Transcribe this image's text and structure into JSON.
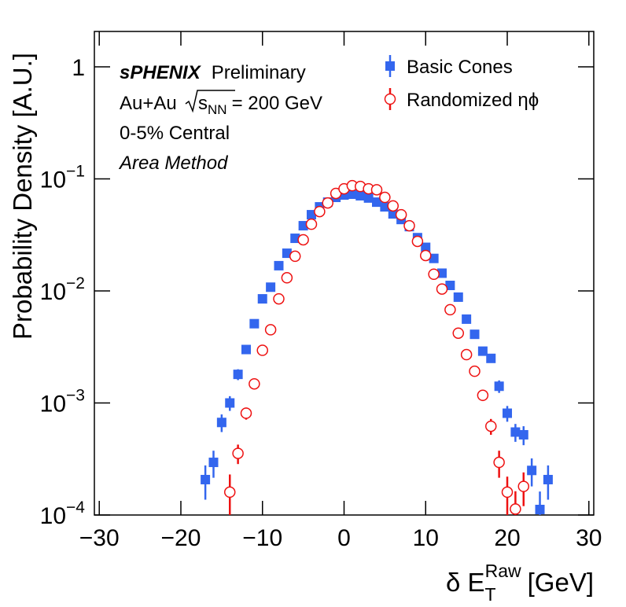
{
  "chart_data": {
    "type": "scatter",
    "ylabel": "Probability Density [A.U.]",
    "xlabel": {
      "text": "δ E",
      "subscript": "T",
      "superscript": "Raw",
      "unit": "[GeV]"
    },
    "annotations": {
      "experiment": "sPHENIX",
      "status": "Preliminary",
      "collision": "Au+Au",
      "energy": {
        "symbol": "s",
        "subscript": "NN",
        "text": "= 200 GeV"
      },
      "centrality": "0-5% Central",
      "method": "Area Method"
    },
    "log_y": true,
    "legend": "top-right",
    "xlim": [
      -30.6,
      30.6
    ],
    "ylim": [
      0.0001,
      2.07
    ],
    "xticks": [
      {
        "value": -30,
        "label": "−30"
      },
      {
        "value": -20,
        "label": "−20"
      },
      {
        "value": -10,
        "label": "−10"
      },
      0,
      10,
      20,
      30
    ],
    "yticks": [
      1,
      {
        "value": 0.1,
        "label": "10",
        "exponent": "−1"
      },
      {
        "value": 0.01,
        "label": "10",
        "exponent": "−2"
      },
      {
        "value": 0.001,
        "label": "10",
        "exponent": "−3"
      },
      {
        "value": 0.0001,
        "label": "10",
        "exponent": "−4"
      }
    ],
    "series": [
      {
        "name": "Basic Cones",
        "color": "#3366ee",
        "marker": "square",
        "x": [
          -17,
          -16,
          -15,
          -14,
          -13,
          -12,
          -11,
          -10,
          -9,
          -8,
          -7,
          -6,
          -5,
          -4,
          -3,
          -2,
          -1,
          0,
          1,
          2,
          3,
          4,
          5,
          6,
          7,
          8,
          9,
          10,
          11,
          12,
          13,
          14,
          15,
          16,
          17,
          18,
          19,
          20,
          21,
          22,
          23,
          24,
          25
        ],
        "values": [
          0.000207,
          0.000295,
          0.00067,
          0.001,
          0.0018,
          0.003,
          0.0051,
          0.0085,
          0.0108,
          0.0168,
          0.0217,
          0.0295,
          0.0382,
          0.0479,
          0.0563,
          0.062,
          0.0684,
          0.0718,
          0.073,
          0.0707,
          0.0675,
          0.062,
          0.0563,
          0.0487,
          0.0434,
          0.0375,
          0.0299,
          0.0245,
          0.0195,
          0.0144,
          0.0112,
          0.0088,
          0.0056,
          0.0041,
          0.0029,
          0.0025,
          0.00141,
          0.00081,
          0.00055,
          0.00052,
          0.00025,
          0.000112,
          0.000207
        ],
        "errors": [
          7e-05,
          8e-05,
          0.00012,
          0.00015,
          0.0002,
          0.0002,
          0.0003,
          0.0004,
          0.0005,
          0.0006,
          0.0007,
          0.0008,
          0.0009,
          0.001,
          0.001,
          0.001,
          0.001,
          0.001,
          0.001,
          0.001,
          0.001,
          0.001,
          0.001,
          0.001,
          0.001,
          0.0009,
          0.0008,
          0.0007,
          0.0006,
          0.0005,
          0.0005,
          0.0004,
          0.0003,
          0.0003,
          0.00025,
          0.0002,
          0.00018,
          0.00013,
          0.0001,
          0.0001,
          7e-05,
          5e-05,
          7e-05
        ]
      },
      {
        "name": "Randomized ηϕ",
        "color": "#ee1111",
        "marker": "open-circle",
        "x": [
          -14,
          -13,
          -12,
          -11,
          -10,
          -9,
          -8,
          -7,
          -6,
          -5,
          -4,
          -3,
          -2,
          -1,
          0,
          1,
          2,
          3,
          4,
          5,
          6,
          7,
          8,
          9,
          10,
          11,
          12,
          13,
          14,
          15,
          16,
          17,
          18,
          19,
          20,
          21,
          22
        ],
        "values": [
          0.00016,
          0.000355,
          0.00081,
          0.00148,
          0.00295,
          0.0045,
          0.0085,
          0.0131,
          0.0204,
          0.0286,
          0.0394,
          0.0511,
          0.061,
          0.0742,
          0.0816,
          0.087,
          0.0856,
          0.0816,
          0.08,
          0.0684,
          0.0574,
          0.0479,
          0.0382,
          0.0277,
          0.0207,
          0.0141,
          0.0104,
          0.0068,
          0.0042,
          0.0027,
          0.00192,
          0.00117,
          0.00062,
          0.000295,
          0.00016,
          0.000113,
          0.00018
        ],
        "errors": [
          7e-05,
          7e-05,
          0.0001,
          0.00015,
          0.0002,
          0.0003,
          0.0004,
          0.0005,
          0.0006,
          0.0007,
          0.0008,
          0.0009,
          0.001,
          0.001,
          0.001,
          0.001,
          0.001,
          0.001,
          0.001,
          0.001,
          0.0009,
          0.0008,
          0.0007,
          0.0006,
          0.0005,
          0.0004,
          0.0004,
          0.0003,
          0.0002,
          0.0002,
          0.00015,
          0.00013,
          0.0001,
          8e-05,
          6e-05,
          5e-05,
          6e-05
        ]
      }
    ]
  }
}
